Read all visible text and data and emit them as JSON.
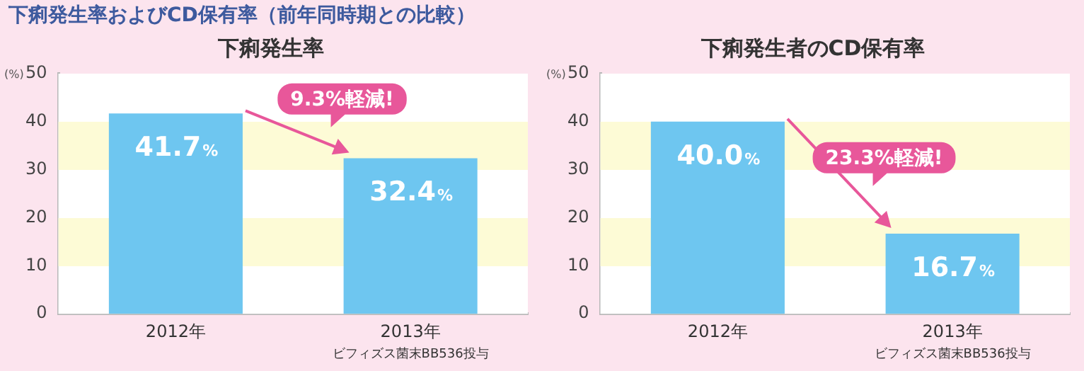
{
  "chart_data": [
    {
      "type": "bar",
      "title": "下痢発生率",
      "ylabel": "(%)",
      "categories": [
        "2012年",
        "2013年"
      ],
      "values": [
        41.7,
        32.4
      ],
      "color": "#6ec6f0",
      "value_labels": [
        "41.7%",
        "32.4%"
      ],
      "ylim": [
        0,
        50
      ],
      "yticks": [
        0,
        10,
        20,
        30,
        40,
        50
      ],
      "grid": false,
      "bands": [
        {
          "axis": "y",
          "from": 10,
          "to": 20,
          "color": "#fdfbd6"
        },
        {
          "axis": "y",
          "from": 30,
          "to": 40,
          "color": "#fdfbd6"
        }
      ],
      "annotations": [
        "下痢発生率およびCD保有率（前年同時期との比較）",
        "ビフィズス菌末BB536投与",
        "9.3%軽減!"
      ]
    },
    {
      "type": "bar",
      "title": "下痢発生者のCD保有率",
      "ylabel": "(%)",
      "categories": [
        "2012年",
        "2013年"
      ],
      "values": [
        40.0,
        16.7
      ],
      "color": "#6ec6f0",
      "value_labels": [
        "40.0%",
        "16.7%"
      ],
      "ylim": [
        0,
        50
      ],
      "yticks": [
        0,
        10,
        20,
        30,
        40,
        50
      ],
      "grid": false,
      "bands": [
        {
          "axis": "y",
          "from": 10,
          "to": 20,
          "color": "#fdfbd6"
        },
        {
          "axis": "y",
          "from": 30,
          "to": 40,
          "color": "#fdfbd6"
        }
      ],
      "annotations": [
        "ビフィズス菌末BB536投与",
        "23.3%軽減!"
      ]
    }
  ]
}
